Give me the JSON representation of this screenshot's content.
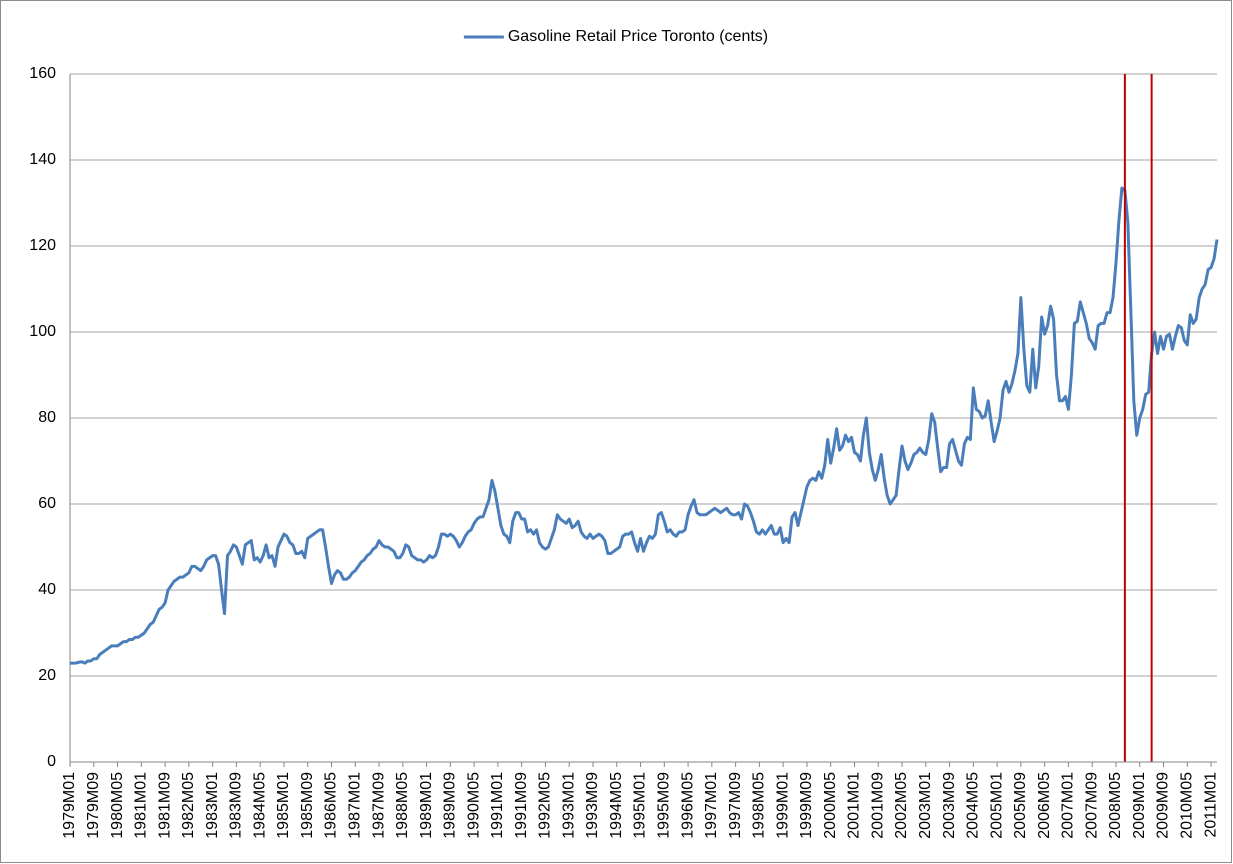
{
  "chart_data": {
    "type": "line",
    "categories": [
      "1979M01",
      null,
      null,
      null,
      null,
      null,
      null,
      null,
      "1979M09",
      null,
      null,
      null,
      null,
      null,
      null,
      null,
      "1980M05",
      null,
      null,
      null,
      null,
      null,
      null,
      null,
      "1981M01",
      null,
      null,
      null,
      null,
      null,
      null,
      null,
      "1981M09",
      null,
      null,
      null,
      null,
      null,
      null,
      null,
      "1982M05",
      null,
      null,
      null,
      null,
      null,
      null,
      null,
      "1983M01",
      null,
      null,
      null,
      null,
      null,
      null,
      null,
      "1983M09",
      null,
      null,
      null,
      null,
      null,
      null,
      null,
      "1984M05",
      null,
      null,
      null,
      null,
      null,
      null,
      null,
      "1985M01",
      null,
      null,
      null,
      null,
      null,
      null,
      null,
      "1985M09",
      null,
      null,
      null,
      null,
      null,
      null,
      null,
      "1986M05",
      null,
      null,
      null,
      null,
      null,
      null,
      null,
      "1987M01",
      null,
      null,
      null,
      null,
      null,
      null,
      null,
      "1987M09",
      null,
      null,
      null,
      null,
      null,
      null,
      null,
      "1988M05",
      null,
      null,
      null,
      null,
      null,
      null,
      null,
      "1989M01",
      null,
      null,
      null,
      null,
      null,
      null,
      null,
      "1989M09",
      null,
      null,
      null,
      null,
      null,
      null,
      null,
      "1990M05",
      null,
      null,
      null,
      null,
      null,
      null,
      null,
      "1991M01",
      null,
      null,
      null,
      null,
      null,
      null,
      null,
      "1991M09",
      null,
      null,
      null,
      null,
      null,
      null,
      null,
      "1992M05",
      null,
      null,
      null,
      null,
      null,
      null,
      null,
      "1993M01",
      null,
      null,
      null,
      null,
      null,
      null,
      null,
      "1993M09",
      null,
      null,
      null,
      null,
      null,
      null,
      null,
      "1994M05",
      null,
      null,
      null,
      null,
      null,
      null,
      null,
      "1995M01",
      null,
      null,
      null,
      null,
      null,
      null,
      null,
      "1995M09",
      null,
      null,
      null,
      null,
      null,
      null,
      null,
      "1996M05",
      null,
      null,
      null,
      null,
      null,
      null,
      null,
      "1997M01",
      null,
      null,
      null,
      null,
      null,
      null,
      null,
      "1997M09",
      null,
      null,
      null,
      null,
      null,
      null,
      null,
      "1998M05",
      null,
      null,
      null,
      null,
      null,
      null,
      null,
      "1999M01",
      null,
      null,
      null,
      null,
      null,
      null,
      null,
      "1999M09",
      null,
      null,
      null,
      null,
      null,
      null,
      null,
      "2000M05",
      null,
      null,
      null,
      null,
      null,
      null,
      null,
      "2001M01",
      null,
      null,
      null,
      null,
      null,
      null,
      null,
      "2001M09",
      null,
      null,
      null,
      null,
      null,
      null,
      null,
      "2002M05",
      null,
      null,
      null,
      null,
      null,
      null,
      null,
      "2003M01",
      null,
      null,
      null,
      null,
      null,
      null,
      null,
      "2003M09",
      null,
      null,
      null,
      null,
      null,
      null,
      null,
      "2004M05",
      null,
      null,
      null,
      null,
      null,
      null,
      null,
      "2005M01",
      null,
      null,
      null,
      null,
      null,
      null,
      null,
      "2005M09",
      null,
      null,
      null,
      null,
      null,
      null,
      null,
      "2006M05",
      null,
      null,
      null,
      null,
      null,
      null,
      null,
      "2007M01",
      null,
      null,
      null,
      null,
      null,
      null,
      null,
      "2007M09",
      null,
      null,
      null,
      null,
      null,
      null,
      null,
      "2008M05",
      null,
      null,
      null,
      null,
      null,
      null,
      null,
      "2009M01",
      null,
      null,
      null,
      null,
      null,
      null,
      null,
      "2009M09",
      null,
      null,
      null,
      null,
      null,
      null,
      null,
      "2010M05",
      null,
      null,
      null,
      null,
      null,
      null,
      null,
      "2011M01",
      null,
      null
    ],
    "series": [
      {
        "name": "Gasoline Retail Price Toronto (cents)",
        "color": "#4a7ebb",
        "values": [
          23,
          23,
          23,
          23.2,
          23.3,
          23,
          23.5,
          23.5,
          24,
          24,
          25,
          25.5,
          26,
          26.5,
          27,
          27,
          27,
          27.5,
          28,
          28,
          28.5,
          28.5,
          29,
          29,
          29.5,
          30,
          31,
          32,
          32.5,
          34,
          35.5,
          36,
          37,
          40,
          41,
          42,
          42.5,
          43,
          43,
          43.5,
          44,
          45.5,
          45.5,
          45,
          44.5,
          45.5,
          47,
          47.5,
          48,
          48,
          46,
          40,
          34.5,
          48,
          49,
          50.5,
          50,
          48,
          46,
          50.5,
          51,
          51.5,
          47,
          47.5,
          46.5,
          48,
          50.5,
          47.5,
          48,
          45.5,
          50,
          51.5,
          53,
          52.5,
          51,
          50.5,
          48.5,
          48.5,
          49,
          47.5,
          52,
          52.5,
          53,
          53.5,
          54,
          54,
          50,
          45.5,
          41.5,
          43.5,
          44.5,
          44,
          42.5,
          42.5,
          43,
          44,
          44.5,
          45.5,
          46.5,
          47,
          48,
          48.5,
          49.5,
          50,
          51.5,
          50.5,
          50,
          50,
          49.5,
          49,
          47.5,
          47.5,
          48.5,
          50.5,
          50,
          48,
          47.5,
          47,
          47,
          46.5,
          47,
          48,
          47.5,
          48,
          50,
          53,
          53,
          52.5,
          53,
          52.5,
          51.5,
          50,
          51,
          52.5,
          53.5,
          54,
          55.5,
          56.5,
          57,
          57,
          59,
          61,
          65.5,
          63,
          59,
          55,
          53,
          52.5,
          51,
          56,
          58,
          58,
          56.5,
          56.5,
          53.5,
          54,
          53,
          54,
          51,
          50,
          49.5,
          50,
          52,
          54,
          57.5,
          56.5,
          56,
          55.5,
          56.5,
          54.5,
          55,
          56,
          53.5,
          52.5,
          52,
          53,
          52,
          52.5,
          53,
          52.5,
          51.5,
          48.5,
          48.5,
          49,
          49.5,
          50,
          52.5,
          53,
          53,
          53.5,
          51,
          49,
          52,
          49,
          51,
          52.5,
          52,
          53,
          57.5,
          58,
          56,
          53.5,
          54,
          53,
          52.5,
          53.5,
          53.5,
          54,
          57.5,
          59.5,
          61,
          58,
          57.5,
          57.5,
          57.5,
          58,
          58.5,
          59,
          58.5,
          58,
          58.5,
          59,
          58,
          57.5,
          57.5,
          58,
          56.5,
          60,
          59.5,
          58,
          56,
          53.5,
          53,
          54,
          53,
          54,
          55,
          53,
          53,
          54.5,
          51,
          52,
          51,
          57,
          58,
          55,
          58,
          61,
          64,
          65.5,
          66,
          65.5,
          67.5,
          66,
          69,
          75,
          69.5,
          73,
          77.5,
          72.5,
          73.5,
          76,
          74.5,
          75.5,
          72,
          71.5,
          70,
          76,
          80,
          72,
          68,
          65.5,
          68,
          71.5,
          66,
          62,
          60,
          61,
          62,
          68,
          73.5,
          70,
          68,
          69.5,
          71.5,
          72,
          73,
          72,
          71.5,
          75,
          81,
          79,
          73,
          67.5,
          68.5,
          68.5,
          74,
          75,
          72.5,
          70,
          69,
          74,
          75.5,
          75,
          87,
          82,
          81.5,
          80,
          80.5,
          84,
          79,
          74.5,
          77,
          80,
          86.5,
          88.5,
          86,
          88,
          91,
          95,
          108,
          96,
          87.5,
          86,
          96,
          87,
          92,
          103.5,
          99.5,
          101.5,
          106,
          103,
          90,
          84,
          84,
          85,
          82,
          90,
          102,
          102.5,
          107,
          104.5,
          102,
          98.5,
          97.5,
          96,
          101.5,
          102,
          102,
          104.5,
          104.5,
          108,
          116,
          126,
          133.5,
          133,
          125.5,
          105,
          84,
          76,
          80,
          82,
          85.5,
          86,
          95,
          100,
          95,
          99,
          96,
          99,
          99.5,
          96,
          99,
          101.5,
          101,
          98,
          97,
          104,
          102,
          103,
          108,
          110,
          111,
          114.5,
          115,
          117,
          121.5
        ]
      }
    ],
    "ylim": [
      0,
      160
    ],
    "yticks": [
      0,
      20,
      40,
      60,
      80,
      100,
      120,
      140,
      160
    ],
    "grid": true,
    "legend": "top",
    "vlines": {
      "color": "#c00000",
      "at": [
        355,
        364
      ]
    }
  }
}
